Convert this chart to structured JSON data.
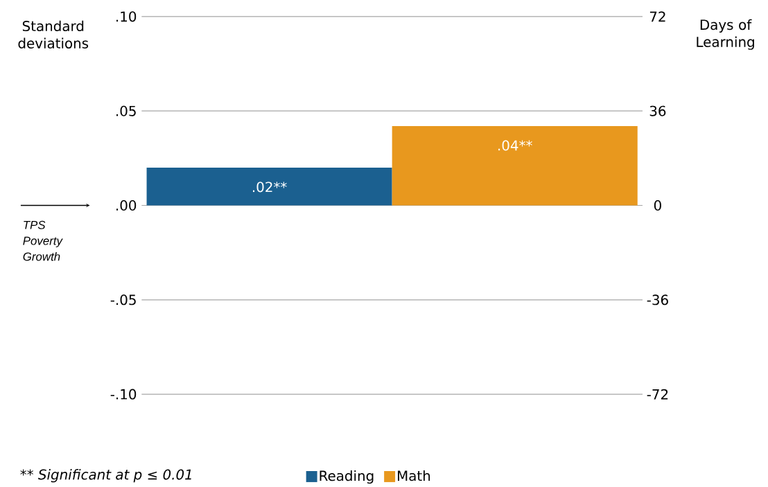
{
  "chart_data": {
    "type": "bar",
    "ylabel": "Standard deviations",
    "y2label": "Days of Learning",
    "categories": [
      null
    ],
    "series": [
      {
        "name": "Reading",
        "color": "#1b6090",
        "values": [
          0.02
        ],
        "value_labels": [
          ".02**"
        ]
      },
      {
        "name": "Math",
        "color": "#e8981e",
        "values": [
          0.042
        ],
        "value_labels": [
          ".04**"
        ]
      }
    ],
    "ylim": [
      -0.1,
      0.1
    ],
    "yticks": [
      {
        "value": 0.1,
        "label": ".10"
      },
      {
        "value": 0.05,
        "label": ".05"
      },
      {
        "value": 0,
        "label": ".00"
      },
      {
        "value": -0.05,
        "label": "-.05"
      },
      {
        "value": -0.1,
        "label": "-.10"
      }
    ],
    "y2lim": [
      -72,
      72
    ],
    "y2ticks": [
      72,
      36,
      0,
      -36,
      -72
    ],
    "grid": "y",
    "legend": "bottom",
    "annotations": [
      "TPS Poverty Growth",
      "** Significant at p ≤ 0.01"
    ]
  }
}
